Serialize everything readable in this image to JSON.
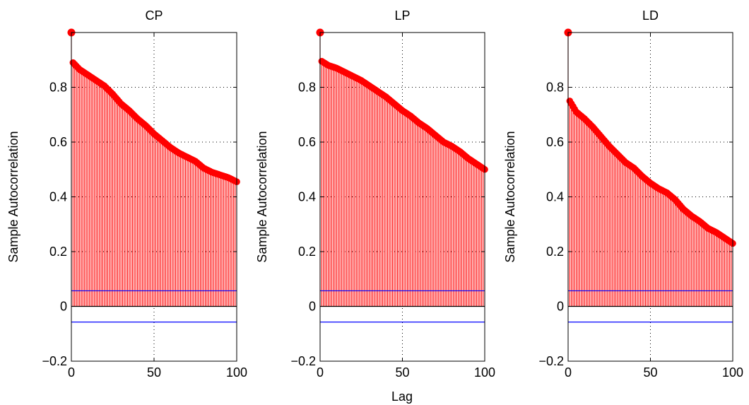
{
  "xlabel": "Lag",
  "colors": {
    "stem": "#ff0000",
    "marker": "#ff0000",
    "bound": "#0000ff",
    "axis": "#000000",
    "grid": "#000000"
  },
  "chart_data": [
    {
      "type": "stem",
      "title": "CP",
      "ylabel": "Sample Autocorrelation",
      "xlabel": "",
      "xlim": [
        0,
        100
      ],
      "ylim": [
        -0.2,
        1.0
      ],
      "xticks": [
        0,
        50,
        100
      ],
      "yticks": [
        -0.2,
        0,
        0.2,
        0.4,
        0.6,
        0.8
      ],
      "ytick_labels": [
        "−0.2",
        "0",
        "0.2",
        "0.4",
        "0.6",
        "0.8"
      ],
      "xtick_labels": [
        "0",
        "50",
        "100"
      ],
      "grid": true,
      "bounds": [
        0.057,
        -0.057
      ],
      "x": [
        0,
        1,
        5,
        10,
        15,
        20,
        25,
        30,
        35,
        40,
        45,
        50,
        55,
        60,
        65,
        70,
        75,
        80,
        85,
        90,
        95,
        100
      ],
      "values": [
        1.0,
        0.89,
        0.865,
        0.845,
        0.825,
        0.805,
        0.775,
        0.74,
        0.715,
        0.685,
        0.66,
        0.63,
        0.605,
        0.58,
        0.56,
        0.545,
        0.53,
        0.505,
        0.49,
        0.48,
        0.47,
        0.455
      ]
    },
    {
      "type": "stem",
      "title": "LP",
      "ylabel": "Sample Autocorrelation",
      "xlabel": "Lag",
      "xlim": [
        0,
        100
      ],
      "ylim": [
        -0.2,
        1.0
      ],
      "xticks": [
        0,
        50,
        100
      ],
      "yticks": [
        -0.2,
        0,
        0.2,
        0.4,
        0.6,
        0.8
      ],
      "ytick_labels": [
        "−0.2",
        "0",
        "0.2",
        "0.4",
        "0.6",
        "0.8"
      ],
      "xtick_labels": [
        "0",
        "50",
        "100"
      ],
      "grid": true,
      "bounds": [
        0.057,
        -0.057
      ],
      "x": [
        0,
        1,
        5,
        10,
        15,
        20,
        25,
        30,
        35,
        40,
        45,
        50,
        55,
        60,
        65,
        70,
        75,
        80,
        85,
        90,
        95,
        100
      ],
      "values": [
        1.0,
        0.895,
        0.88,
        0.87,
        0.855,
        0.84,
        0.825,
        0.805,
        0.785,
        0.765,
        0.74,
        0.715,
        0.695,
        0.67,
        0.65,
        0.625,
        0.6,
        0.585,
        0.565,
        0.54,
        0.52,
        0.5
      ]
    },
    {
      "type": "stem",
      "title": "LD",
      "ylabel": "Sample Autocorrelation",
      "xlabel": "",
      "xlim": [
        0,
        100
      ],
      "ylim": [
        -0.2,
        1.0
      ],
      "xticks": [
        0,
        50,
        100
      ],
      "yticks": [
        -0.2,
        0,
        0.2,
        0.4,
        0.6,
        0.8
      ],
      "ytick_labels": [
        "−0.2",
        "0",
        "0.2",
        "0.4",
        "0.6",
        "0.8"
      ],
      "xtick_labels": [
        "0",
        "50",
        "100"
      ],
      "grid": true,
      "bounds": [
        0.057,
        -0.057
      ],
      "x": [
        0,
        1,
        5,
        10,
        15,
        20,
        25,
        30,
        35,
        40,
        45,
        50,
        55,
        60,
        65,
        70,
        75,
        80,
        85,
        90,
        95,
        100
      ],
      "values": [
        1.0,
        0.75,
        0.71,
        0.685,
        0.655,
        0.62,
        0.585,
        0.555,
        0.525,
        0.505,
        0.475,
        0.45,
        0.43,
        0.415,
        0.39,
        0.355,
        0.33,
        0.31,
        0.285,
        0.27,
        0.25,
        0.23
      ]
    }
  ]
}
